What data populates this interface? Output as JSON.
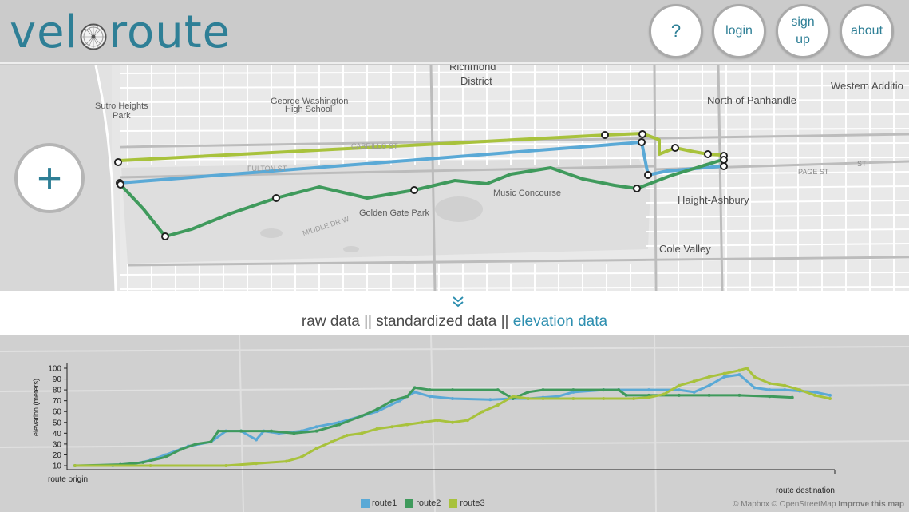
{
  "app": {
    "logo_text_left": "vel",
    "logo_text_right": "route"
  },
  "nav": {
    "help": "?",
    "login": "login",
    "signup_line1": "sign",
    "signup_line2": "up",
    "about": "about"
  },
  "map": {
    "add_button": "+",
    "labels": {
      "richmond": "Richmond",
      "district": "District",
      "western_addition": "Western Additio",
      "north_panhandle": "North of Panhandle",
      "sutro_heights_1": "Sutro Heights",
      "sutro_heights_2": "Park",
      "gw_1": "George Washington",
      "gw_2": "High School",
      "music_concourse": "Music Concourse",
      "golden_gate_park": "Golden Gate Park",
      "haight_ashbury": "Haight-Ashbury",
      "cole_valley": "Cole Valley",
      "fulton_st": "FULTON ST",
      "cabrillo_st": "CABRILLO ST",
      "page_st": "PAGE ST",
      "middle_dr": "MIDDLE DR W",
      "st": "ST"
    },
    "route_colors": {
      "route1": "#5aa9d6",
      "route2": "#3f9a5c",
      "route3": "#a8c23c"
    }
  },
  "tabs": {
    "raw": "raw data",
    "sep1": " || ",
    "standardized": "standardized data",
    "sep2": " || ",
    "elevation": "elevation data"
  },
  "chart_data": {
    "type": "line",
    "ylabel": "elevation (meters)",
    "xlabel_left": "route origin",
    "xlabel_right": "route destination",
    "ylim": [
      0,
      100
    ],
    "yticks": [
      10,
      20,
      30,
      40,
      50,
      60,
      70,
      80,
      90,
      100
    ],
    "x_range": [
      0,
      100
    ],
    "series": [
      {
        "name": "route1",
        "color": "#5aa9d6",
        "points": [
          [
            0,
            10
          ],
          [
            5,
            10
          ],
          [
            8,
            12
          ],
          [
            10,
            15
          ],
          [
            12,
            20
          ],
          [
            15,
            28
          ],
          [
            18,
            32
          ],
          [
            20,
            42
          ],
          [
            22,
            42
          ],
          [
            24,
            34
          ],
          [
            25,
            42
          ],
          [
            27,
            40
          ],
          [
            30,
            42
          ],
          [
            32,
            46
          ],
          [
            35,
            50
          ],
          [
            38,
            56
          ],
          [
            40,
            60
          ],
          [
            43,
            70
          ],
          [
            45,
            78
          ],
          [
            47,
            74
          ],
          [
            50,
            72
          ],
          [
            55,
            71
          ],
          [
            58,
            72
          ],
          [
            60,
            72
          ],
          [
            62,
            73
          ],
          [
            64,
            74
          ],
          [
            66,
            78
          ],
          [
            70,
            80
          ],
          [
            72,
            80
          ],
          [
            76,
            80
          ],
          [
            80,
            80
          ],
          [
            82,
            78
          ],
          [
            84,
            84
          ],
          [
            86,
            92
          ],
          [
            88,
            94
          ],
          [
            90,
            82
          ],
          [
            92,
            80
          ],
          [
            94,
            80
          ],
          [
            96,
            79
          ],
          [
            98,
            78
          ],
          [
            100,
            75
          ]
        ]
      },
      {
        "name": "route2",
        "color": "#3f9a5c",
        "points": [
          [
            0,
            10
          ],
          [
            6,
            11
          ],
          [
            9,
            13
          ],
          [
            12,
            18
          ],
          [
            14,
            25
          ],
          [
            16,
            30
          ],
          [
            18,
            32
          ],
          [
            19,
            42
          ],
          [
            22,
            42
          ],
          [
            26,
            42
          ],
          [
            29,
            40
          ],
          [
            32,
            42
          ],
          [
            35,
            48
          ],
          [
            38,
            56
          ],
          [
            40,
            62
          ],
          [
            42,
            70
          ],
          [
            44,
            74
          ],
          [
            45,
            82
          ],
          [
            47,
            80
          ],
          [
            50,
            80
          ],
          [
            56,
            80
          ],
          [
            58,
            72
          ],
          [
            60,
            78
          ],
          [
            62,
            80
          ],
          [
            66,
            80
          ],
          [
            70,
            80
          ],
          [
            72,
            80
          ],
          [
            73,
            75
          ],
          [
            76,
            75
          ],
          [
            80,
            75
          ],
          [
            84,
            75
          ],
          [
            88,
            75
          ],
          [
            92,
            74
          ],
          [
            95,
            73
          ]
        ]
      },
      {
        "name": "route3",
        "color": "#a8c23c",
        "points": [
          [
            0,
            10
          ],
          [
            10,
            10
          ],
          [
            20,
            10
          ],
          [
            24,
            12
          ],
          [
            28,
            14
          ],
          [
            30,
            18
          ],
          [
            32,
            26
          ],
          [
            34,
            32
          ],
          [
            36,
            38
          ],
          [
            38,
            40
          ],
          [
            40,
            44
          ],
          [
            42,
            46
          ],
          [
            44,
            48
          ],
          [
            46,
            50
          ],
          [
            48,
            52
          ],
          [
            50,
            50
          ],
          [
            52,
            52
          ],
          [
            54,
            60
          ],
          [
            56,
            66
          ],
          [
            58,
            74
          ],
          [
            60,
            72
          ],
          [
            62,
            72
          ],
          [
            66,
            72
          ],
          [
            70,
            72
          ],
          [
            74,
            72
          ],
          [
            76,
            73
          ],
          [
            78,
            76
          ],
          [
            80,
            84
          ],
          [
            82,
            88
          ],
          [
            84,
            92
          ],
          [
            86,
            95
          ],
          [
            88,
            98
          ],
          [
            89,
            100
          ],
          [
            90,
            92
          ],
          [
            92,
            86
          ],
          [
            94,
            84
          ],
          [
            96,
            80
          ],
          [
            98,
            75
          ],
          [
            100,
            72
          ]
        ]
      }
    ]
  },
  "legend": {
    "route1": "route1",
    "route2": "route2",
    "route3": "route3"
  },
  "attribution": {
    "text": "© Mapbox © OpenStreetMap",
    "improve": "Improve this map"
  }
}
